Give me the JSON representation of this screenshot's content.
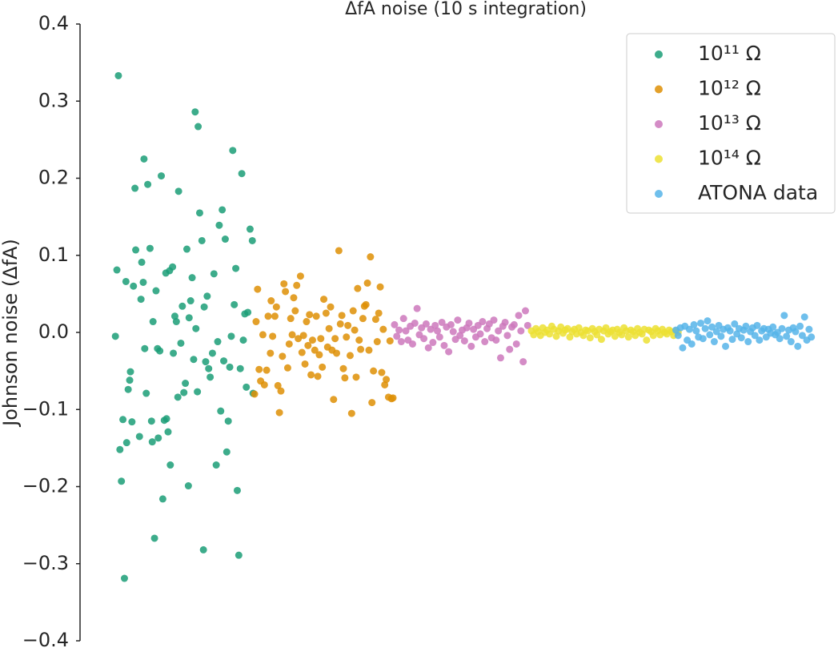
{
  "chart_data": {
    "type": "scatter",
    "title": "ΔfA noise (10 s integration)",
    "ylabel": "Johnson noise (ΔfA)",
    "xlim": [
      0,
      100
    ],
    "ylim": [
      -0.4,
      0.4
    ],
    "yticks": [
      {
        "value": -0.4,
        "label": "−0.4"
      },
      {
        "value": -0.3,
        "label": "−0.3"
      },
      {
        "value": -0.2,
        "label": "−0.2"
      },
      {
        "value": -0.1,
        "label": "−0.1"
      },
      {
        "value": 0,
        "label": "0.0"
      },
      0.1,
      0.2,
      0.3,
      0.4
    ],
    "grid": false,
    "legend": "upper right",
    "series": [
      {
        "name": "10¹¹ Ω",
        "color": "#1b9e77",
        "x": [
          5.1,
          4.7,
          4.9,
          5.3,
          5.5,
          5.7,
          5.9,
          6.1,
          6.2,
          6.4,
          6.6,
          6.7,
          6.9,
          7.1,
          7.3,
          7.4,
          7.9,
          8.1,
          8.2,
          8.4,
          8.5,
          8.6,
          8.8,
          9.0,
          9.3,
          9.5,
          9.6,
          9.7,
          9.9,
          10.1,
          10.3,
          10.4,
          10.6,
          10.8,
          11.0,
          11.2,
          11.4,
          11.5,
          11.7,
          11.9,
          12.0,
          12.3,
          12.4,
          12.6,
          12.8,
          13.0,
          13.1,
          13.4,
          13.6,
          13.8,
          14.0,
          14.2,
          14.4,
          14.5,
          14.7,
          14.9,
          15.1,
          15.3,
          15.4,
          15.6,
          15.7,
          15.9,
          16.2,
          16.4,
          16.5,
          16.7,
          16.9,
          17.1,
          17.3,
          17.6,
          17.8,
          18.1,
          18.3,
          18.5,
          18.7,
          18.9,
          19.1,
          19.3,
          19.5,
          19.7,
          19.9,
          20.1,
          20.3,
          20.5,
          20.7,
          20.9,
          21.1,
          21.3,
          21.5,
          21.7,
          21.9,
          22.1,
          22.3,
          22.6,
          22.9,
          23.0
        ],
        "values": [
          0.333,
          -0.005,
          0.081,
          -0.152,
          -0.193,
          -0.113,
          -0.319,
          0.066,
          -0.143,
          -0.074,
          -0.062,
          -0.051,
          -0.116,
          0.06,
          0.187,
          0.107,
          -0.135,
          0.043,
          0.091,
          0.065,
          0.225,
          -0.021,
          -0.079,
          0.192,
          0.109,
          -0.115,
          -0.142,
          0.014,
          -0.267,
          0.054,
          -0.021,
          -0.137,
          -0.024,
          0.203,
          -0.216,
          -0.114,
          0.077,
          -0.112,
          -0.129,
          0.08,
          -0.172,
          0.085,
          -0.027,
          0.021,
          0.014,
          -0.084,
          0.183,
          -0.014,
          0.034,
          -0.078,
          -0.066,
          0.108,
          -0.199,
          0.019,
          0.041,
          0.071,
          -0.035,
          0.286,
          0.005,
          -0.077,
          0.267,
          0.155,
          0.119,
          -0.282,
          0.033,
          -0.038,
          0.047,
          -0.047,
          -0.058,
          -0.027,
          0.076,
          -0.172,
          -0.012,
          0.139,
          -0.102,
          0.159,
          -0.037,
          0.121,
          -0.155,
          -0.115,
          -0.045,
          -0.005,
          0.236,
          0.036,
          0.083,
          -0.205,
          -0.289,
          -0.047,
          0.206,
          -0.01,
          0.024,
          -0.071,
          0.026,
          0.134,
          0.119,
          -0.079
        ]
      },
      {
        "name": "10¹² Ω",
        "color": "#de8f05",
        "x": [
          23.2,
          23.4,
          23.6,
          23.8,
          24.0,
          24.3,
          24.5,
          24.8,
          25.0,
          25.3,
          25.4,
          25.6,
          25.9,
          26.1,
          26.3,
          26.5,
          26.7,
          26.9,
          27.1,
          27.3,
          27.6,
          27.8,
          28.0,
          28.2,
          28.4,
          28.6,
          28.8,
          29.0,
          29.3,
          29.5,
          29.7,
          29.9,
          30.1,
          30.3,
          30.5,
          30.7,
          30.9,
          31.2,
          31.4,
          31.6,
          31.8,
          32.0,
          32.2,
          32.4,
          32.7,
          32.9,
          33.1,
          33.3,
          33.5,
          33.7,
          33.9,
          34.1,
          34.4,
          34.6,
          34.8,
          35.0,
          35.2,
          35.4,
          35.6,
          35.9,
          36.1,
          36.3,
          36.5,
          36.7,
          36.9,
          37.1,
          37.3,
          37.6,
          37.8,
          38.0,
          38.2,
          38.4,
          38.6,
          38.8,
          39.0,
          39.3,
          39.5,
          39.7,
          39.9,
          40.1,
          40.3,
          40.5,
          40.7,
          41.0,
          41.2,
          41.4,
          41.6
        ],
        "values": [
          -0.08,
          0.014,
          0.056,
          -0.048,
          -0.063,
          -0.003,
          -0.068,
          -0.049,
          0.021,
          -0.027,
          0.041,
          -0.005,
          0.021,
          0.033,
          -0.069,
          -0.104,
          -0.076,
          -0.031,
          0.063,
          0.053,
          -0.046,
          -0.015,
          0.018,
          -0.003,
          0.045,
          0.028,
          0.061,
          -0.008,
          0.073,
          -0.026,
          -0.004,
          -0.041,
          0.014,
          -0.017,
          0.023,
          -0.055,
          -0.01,
          -0.023,
          0.021,
          -0.057,
          -0.029,
          -0.008,
          -0.045,
          0.043,
          0.025,
          -0.019,
          0.005,
          0.033,
          -0.023,
          -0.087,
          -0.008,
          -0.027,
          0.106,
          0.011,
          0.022,
          -0.047,
          -0.059,
          -0.006,
          0.009,
          -0.03,
          -0.105,
          0.028,
          0.003,
          -0.058,
          0.057,
          -0.01,
          -0.022,
          0.018,
          0.034,
          0.036,
          0.064,
          -0.023,
          0.098,
          -0.091,
          -0.05,
          0.017,
          -0.012,
          0.025,
          0.059,
          -0.052,
          0.004,
          -0.068,
          -0.061,
          -0.084,
          -0.011,
          -0.086,
          -0.085
        ]
      },
      {
        "name": "10¹³ Ω",
        "color": "#cc78bc",
        "x": [
          41.8,
          42.1,
          42.4,
          42.7,
          43.0,
          43.3,
          43.6,
          43.9,
          44.2,
          44.5,
          44.8,
          45.1,
          45.4,
          45.7,
          46.0,
          46.3,
          46.6,
          46.9,
          47.2,
          47.5,
          47.8,
          48.1,
          48.4,
          48.7,
          49.0,
          49.3,
          49.6,
          49.9,
          50.2,
          50.5,
          50.8,
          51.1,
          51.4,
          51.7,
          52.0,
          52.3,
          52.6,
          52.9,
          53.2,
          53.5,
          53.8,
          54.1,
          54.4,
          54.7,
          55.0,
          55.3,
          55.6,
          55.9,
          56.2,
          56.5,
          56.8,
          57.1,
          57.4,
          57.7,
          58.0,
          58.3,
          58.6,
          58.9,
          59.2,
          59.5
        ],
        "values": [
          0.01,
          -0.005,
          0.003,
          -0.012,
          0.018,
          0.002,
          -0.01,
          0.008,
          -0.015,
          0.012,
          0.031,
          -0.003,
          0.006,
          -0.008,
          0.011,
          -0.02,
          0.004,
          -0.013,
          0.009,
          0.002,
          -0.006,
          0.013,
          -0.017,
          0.007,
          -0.025,
          0.01,
          0.001,
          -0.009,
          0.016,
          -0.004,
          0.003,
          -0.011,
          0.006,
          0.012,
          -0.018,
          0.004,
          -0.006,
          0.009,
          -0.002,
          0.014,
          -0.012,
          0.005,
          0.011,
          -0.007,
          0.016,
          -0.01,
          0.002,
          -0.033,
          0.008,
          0.013,
          -0.004,
          -0.022,
          0.007,
          0.01,
          -0.015,
          0.022,
          0.002,
          -0.038,
          0.028,
          0.009
        ]
      },
      {
        "name": "10¹⁴ Ω",
        "color": "#ece133",
        "x": [
          60.0,
          60.3,
          60.6,
          60.9,
          61.2,
          61.5,
          61.8,
          62.1,
          62.4,
          62.7,
          63.0,
          63.3,
          63.6,
          63.9,
          64.2,
          64.5,
          64.8,
          65.1,
          65.4,
          65.7,
          66.0,
          66.3,
          66.6,
          66.9,
          67.2,
          67.5,
          67.8,
          68.1,
          68.4,
          68.7,
          69.0,
          69.3,
          69.6,
          69.9,
          70.2,
          70.5,
          70.8,
          71.1,
          71.4,
          71.7,
          72.0,
          72.3,
          72.6,
          72.9,
          73.2,
          73.5,
          73.8,
          74.1,
          74.4,
          74.7,
          75.0,
          75.3,
          75.6,
          75.9,
          76.2,
          76.5,
          76.8,
          77.1,
          77.4,
          77.7,
          78.0,
          78.3,
          78.6,
          78.9,
          79.2,
          79.5
        ],
        "values": [
          0.002,
          -0.003,
          0.005,
          0.001,
          -0.004,
          0.006,
          0.0,
          0.003,
          -0.002,
          0.008,
          0.004,
          -0.005,
          0.002,
          0.007,
          -0.001,
          0.003,
          0.005,
          -0.006,
          0.001,
          0.004,
          -0.002,
          0.006,
          0.0,
          -0.004,
          0.003,
          0.002,
          -0.007,
          0.005,
          0.001,
          -0.003,
          0.004,
          -0.009,
          0.002,
          0.006,
          -0.002,
          0.001,
          0.003,
          -0.005,
          0.004,
          0.0,
          -0.003,
          0.006,
          0.002,
          -0.006,
          0.003,
          0.001,
          -0.004,
          0.005,
          0.0,
          -0.002,
          0.004,
          -0.01,
          0.003,
          0.001,
          -0.004,
          0.005,
          0.002,
          -0.003,
          0.004,
          0.0,
          -0.002,
          0.003,
          0.001,
          -0.004,
          0.002,
          0.0
        ]
      },
      {
        "name": "ATONA data",
        "color": "#56b4e9",
        "x": [
          79.2,
          79.5,
          79.8,
          80.1,
          80.4,
          80.7,
          81.0,
          81.3,
          81.6,
          81.9,
          82.2,
          82.5,
          82.8,
          83.1,
          83.4,
          83.7,
          84.0,
          84.3,
          84.6,
          84.9,
          85.2,
          85.5,
          85.8,
          86.1,
          86.4,
          86.7,
          87.0,
          87.3,
          87.6,
          87.9,
          88.2,
          88.5,
          88.8,
          89.1,
          89.4,
          89.7,
          90.0,
          90.3,
          90.6,
          90.9,
          91.2,
          91.5,
          91.8,
          92.1,
          92.4,
          92.7,
          93.0,
          93.3,
          93.6,
          93.9,
          94.2,
          94.5,
          94.8,
          95.1,
          95.4,
          95.7,
          96.0,
          96.3,
          96.6,
          96.9,
          97.2
        ],
        "values": [
          0.003,
          -0.004,
          0.006,
          -0.02,
          0.008,
          -0.01,
          0.004,
          -0.015,
          0.01,
          0.002,
          -0.006,
          0.012,
          -0.008,
          0.005,
          0.015,
          -0.003,
          0.007,
          -0.012,
          0.001,
          0.009,
          -0.005,
          0.004,
          -0.018,
          0.006,
          0.002,
          -0.009,
          0.011,
          -0.002,
          0.005,
          -0.007,
          0.003,
          0.008,
          -0.012,
          0.001,
          0.006,
          -0.004,
          0.009,
          -0.01,
          0.002,
          0.005,
          -0.006,
          0.004,
          -0.001,
          0.007,
          -0.003,
          0.0,
          -0.008,
          0.005,
          0.022,
          -0.005,
          0.003,
          -0.012,
          0.006,
          0.001,
          -0.018,
          0.008,
          -0.004,
          0.02,
          -0.01,
          0.004,
          -0.006
        ]
      }
    ]
  }
}
